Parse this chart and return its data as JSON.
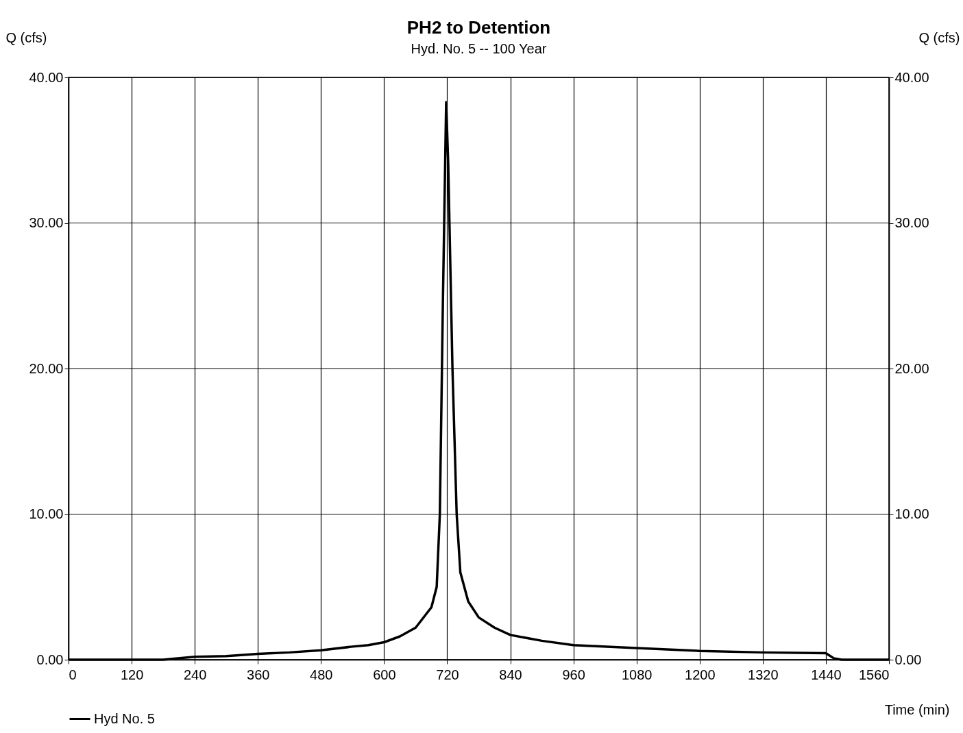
{
  "chart_data": {
    "type": "line",
    "title": "PH2 to Detention",
    "subtitle": "Hyd. No. 5 -- 100 Year",
    "xlabel": "Time (min)",
    "ylabel": "Q (cfs)",
    "y2label": "Q (cfs)",
    "x": [
      0,
      120,
      180,
      240,
      300,
      360,
      420,
      480,
      540,
      570,
      600,
      630,
      660,
      690,
      700,
      706,
      712,
      718,
      722,
      730,
      738,
      745,
      760,
      780,
      810,
      840,
      900,
      960,
      1080,
      1200,
      1320,
      1440,
      1455,
      1470,
      1560
    ],
    "series": [
      {
        "name": "Hyd No. 5",
        "color": "#000000",
        "values": [
          0,
          0,
          0,
          0.2,
          0.25,
          0.4,
          0.5,
          0.65,
          0.9,
          1.0,
          1.2,
          1.6,
          2.2,
          3.6,
          5,
          10,
          25,
          38.3,
          34,
          20,
          10,
          6,
          4,
          2.9,
          2.2,
          1.7,
          1.3,
          1.0,
          0.8,
          0.6,
          0.5,
          0.45,
          0.1,
          0,
          0
        ]
      }
    ],
    "xlim": [
      0,
      1560
    ],
    "xticks": [
      0,
      120,
      240,
      360,
      480,
      600,
      720,
      840,
      960,
      1080,
      1200,
      1320,
      1440,
      1560
    ],
    "ylim": [
      0,
      40
    ],
    "yticks": [
      {
        "value": 0,
        "label": "0.00"
      },
      {
        "value": 10,
        "label": "10.00"
      },
      {
        "value": 20,
        "label": "20.00"
      },
      {
        "value": 30,
        "label": "30.00"
      },
      {
        "value": 40,
        "label": "40.00"
      }
    ],
    "y2lim": [
      0,
      40
    ],
    "y2ticks": [
      {
        "value": 0,
        "label": "0.00"
      },
      {
        "value": 10,
        "label": "10.00"
      },
      {
        "value": 20,
        "label": "20.00"
      },
      {
        "value": 30,
        "label": "30.00"
      },
      {
        "value": 40,
        "label": "40.00"
      }
    ],
    "grid": true,
    "legend": "bottom left",
    "marker": "none",
    "line_style": "solid"
  }
}
